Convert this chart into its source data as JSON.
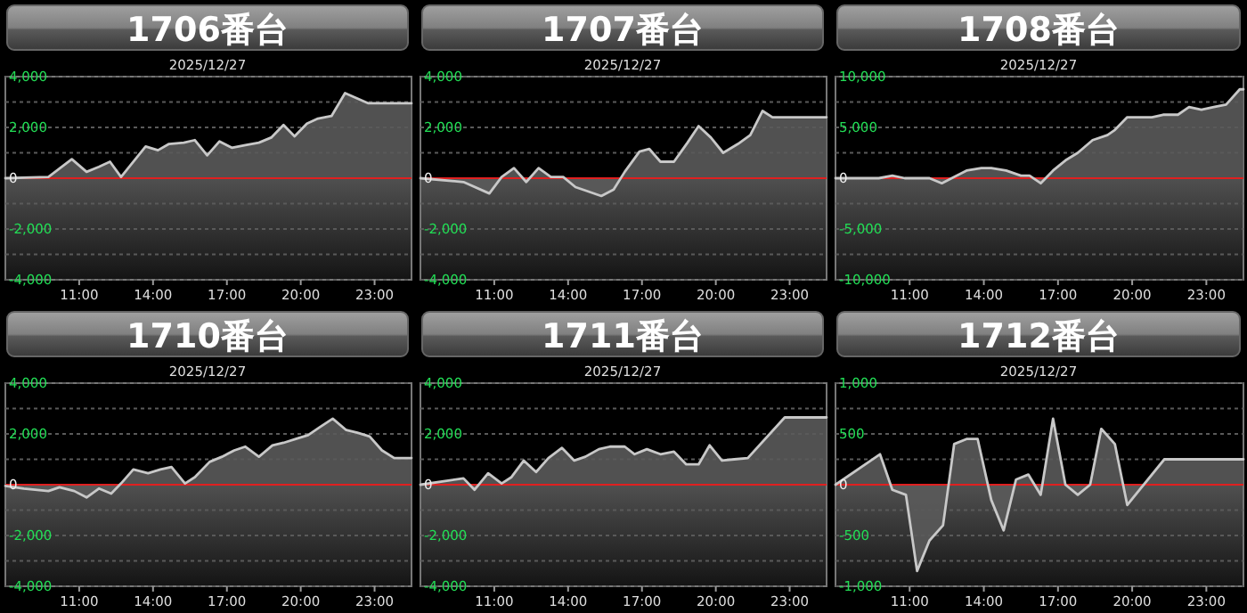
{
  "chart_data": [
    {
      "type": "area",
      "title": "1706番台",
      "subtitle": "2025/12/27",
      "color": "#c8c8c8",
      "grid": "y",
      "xlim": [
        8,
        24.5
      ],
      "ylim": [
        -4000,
        4000
      ],
      "xticks": [
        {
          "value": 11,
          "label": "11:00"
        },
        {
          "value": 14,
          "label": "14:00"
        },
        {
          "value": 17,
          "label": "17:00"
        },
        {
          "value": 20,
          "label": "20:00"
        },
        {
          "value": 23,
          "label": "23:00"
        }
      ],
      "yticks": [
        {
          "value": 4000,
          "label": "4,000"
        },
        {
          "value": 3000,
          "label": null
        },
        {
          "value": 2000,
          "label": "2,000"
        },
        {
          "value": 1000,
          "label": null
        },
        0,
        {
          "value": -1000,
          "label": null
        },
        {
          "value": -2000,
          "label": "-2,000"
        },
        {
          "value": -3000,
          "label": null
        },
        {
          "value": -4000,
          "label": "-4,000"
        }
      ],
      "ref_lines": [
        {
          "axis": "y",
          "value": 0,
          "color": "#e02020"
        }
      ],
      "x": [
        8,
        9.75,
        10.7,
        11.3,
        11.8,
        12.25,
        12.7,
        13.7,
        14.2,
        14.65,
        15.25,
        15.7,
        16.2,
        16.7,
        17.2,
        17.75,
        18.3,
        18.8,
        19.3,
        19.75,
        20.25,
        20.7,
        21.25,
        21.8,
        22.75,
        24.5
      ],
      "values": [
        0,
        50,
        750,
        250,
        450,
        650,
        50,
        1250,
        1100,
        1350,
        1400,
        1500,
        900,
        1450,
        1200,
        1300,
        1400,
        1600,
        2100,
        1650,
        2150,
        2350,
        2450,
        3350,
        2950,
        2950
      ]
    },
    {
      "type": "area",
      "title": "1707番台",
      "subtitle": "2025/12/27",
      "color": "#c8c8c8",
      "grid": "y",
      "xlim": [
        8,
        24.5
      ],
      "ylim": [
        -4000,
        4000
      ],
      "xticks": [
        {
          "value": 11,
          "label": "11:00"
        },
        {
          "value": 14,
          "label": "14:00"
        },
        {
          "value": 17,
          "label": "17:00"
        },
        {
          "value": 20,
          "label": "20:00"
        },
        {
          "value": 23,
          "label": "23:00"
        }
      ],
      "yticks": [
        {
          "value": 4000,
          "label": "4,000"
        },
        {
          "value": 3000,
          "label": null
        },
        {
          "value": 2000,
          "label": "2,000"
        },
        {
          "value": 1000,
          "label": null
        },
        0,
        {
          "value": -1000,
          "label": null
        },
        {
          "value": -2000,
          "label": "-2,000"
        },
        {
          "value": -3000,
          "label": null
        },
        {
          "value": -4000,
          "label": "-4,000"
        }
      ],
      "ref_lines": [
        {
          "axis": "y",
          "value": 0,
          "color": "#e02020"
        }
      ],
      "x": [
        8,
        9.75,
        10.8,
        11.3,
        11.8,
        12.3,
        12.8,
        13.3,
        13.8,
        14.3,
        14.75,
        15.35,
        15.85,
        16.3,
        16.9,
        17.3,
        17.75,
        18.3,
        18.85,
        19.3,
        19.8,
        20.3,
        20.9,
        21.4,
        21.9,
        22.3,
        24.5
      ],
      "values": [
        0,
        -150,
        -600,
        50,
        400,
        -150,
        400,
        50,
        50,
        -350,
        -500,
        -700,
        -450,
        250,
        1050,
        1150,
        650,
        650,
        1400,
        2050,
        1600,
        1000,
        1350,
        1700,
        2650,
        2400,
        2400
      ]
    },
    {
      "type": "area",
      "title": "1708番台",
      "subtitle": "2025/12/27",
      "color": "#c8c8c8",
      "grid": "y",
      "xlim": [
        8,
        24.5
      ],
      "ylim": [
        -10000,
        10000
      ],
      "xticks": [
        {
          "value": 11,
          "label": "11:00"
        },
        {
          "value": 14,
          "label": "14:00"
        },
        {
          "value": 17,
          "label": "17:00"
        },
        {
          "value": 20,
          "label": "20:00"
        },
        {
          "value": 23,
          "label": "23:00"
        }
      ],
      "yticks": [
        {
          "value": 10000,
          "label": "10,000"
        },
        {
          "value": 7500,
          "label": null
        },
        {
          "value": 5000,
          "label": "5,000"
        },
        {
          "value": 2500,
          "label": null
        },
        0,
        {
          "value": -2500,
          "label": null
        },
        {
          "value": -5000,
          "label": "-5,000"
        },
        {
          "value": -7500,
          "label": null
        },
        {
          "value": -10000,
          "label": "-10,000"
        }
      ],
      "ref_lines": [
        {
          "axis": "y",
          "value": 0,
          "color": "#e02020"
        }
      ],
      "x": [
        8,
        9.75,
        10.3,
        10.8,
        11.4,
        11.8,
        12.3,
        12.7,
        13.3,
        13.9,
        14.3,
        14.9,
        15.5,
        15.85,
        16.3,
        16.8,
        17.3,
        17.8,
        18.4,
        19,
        19.3,
        19.8,
        20.3,
        20.8,
        21.25,
        21.85,
        22.3,
        22.8,
        23.3,
        23.8,
        24.35,
        24.5
      ],
      "values": [
        0,
        0,
        250,
        0,
        0,
        0,
        -500,
        0,
        750,
        1000,
        1000,
        750,
        250,
        250,
        -500,
        750,
        1750,
        2500,
        3750,
        4250,
        4750,
        6000,
        6000,
        6000,
        6250,
        6250,
        7000,
        6750,
        7000,
        7250,
        8750,
        8750
      ]
    },
    {
      "type": "area",
      "title": "1710番台",
      "subtitle": "2025/12/27",
      "color": "#c8c8c8",
      "grid": "y",
      "xlim": [
        8,
        24.5
      ],
      "ylim": [
        -4000,
        4000
      ],
      "xticks": [
        {
          "value": 11,
          "label": "11:00"
        },
        {
          "value": 14,
          "label": "14:00"
        },
        {
          "value": 17,
          "label": "17:00"
        },
        {
          "value": 20,
          "label": "20:00"
        },
        {
          "value": 23,
          "label": "23:00"
        }
      ],
      "yticks": [
        {
          "value": 4000,
          "label": "4,000"
        },
        {
          "value": 3000,
          "label": null
        },
        {
          "value": 2000,
          "label": "2,000"
        },
        {
          "value": 1000,
          "label": null
        },
        0,
        {
          "value": -1000,
          "label": null
        },
        {
          "value": -2000,
          "label": "-2,000"
        },
        {
          "value": -3000,
          "label": null
        },
        {
          "value": -4000,
          "label": "-4,000"
        }
      ],
      "ref_lines": [
        {
          "axis": "y",
          "value": 0,
          "color": "#e02020"
        }
      ],
      "x": [
        8,
        8.75,
        9.75,
        10.2,
        10.8,
        11.3,
        11.8,
        12.3,
        12.7,
        13.2,
        13.8,
        14.3,
        14.75,
        15.3,
        15.7,
        16.3,
        16.8,
        17.3,
        17.75,
        18.3,
        18.85,
        19.3,
        19.8,
        20.3,
        20.75,
        21.3,
        21.85,
        22.3,
        22.8,
        23.3,
        23.8,
        24.5
      ],
      "values": [
        -50,
        -150,
        -250,
        -100,
        -250,
        -500,
        -150,
        -350,
        50,
        600,
        450,
        600,
        700,
        50,
        300,
        900,
        1100,
        1350,
        1500,
        1100,
        1550,
        1650,
        1800,
        1950,
        2250,
        2600,
        2150,
        2050,
        1900,
        1350,
        1050,
        1050
      ]
    },
    {
      "type": "area",
      "title": "1711番台",
      "subtitle": "2025/12/27",
      "color": "#c8c8c8",
      "grid": "y",
      "xlim": [
        8,
        24.5
      ],
      "ylim": [
        -4000,
        4000
      ],
      "xticks": [
        {
          "value": 11,
          "label": "11:00"
        },
        {
          "value": 14,
          "label": "14:00"
        },
        {
          "value": 17,
          "label": "17:00"
        },
        {
          "value": 20,
          "label": "20:00"
        },
        {
          "value": 23,
          "label": "23:00"
        }
      ],
      "yticks": [
        {
          "value": 4000,
          "label": "4,000"
        },
        {
          "value": 3000,
          "label": null
        },
        {
          "value": 2000,
          "label": "2,000"
        },
        {
          "value": 1000,
          "label": null
        },
        0,
        {
          "value": -1000,
          "label": null
        },
        {
          "value": -2000,
          "label": "-2,000"
        },
        {
          "value": -3000,
          "label": null
        },
        {
          "value": -4000,
          "label": "-4,000"
        }
      ],
      "ref_lines": [
        {
          "axis": "y",
          "value": 0,
          "color": "#e02020"
        }
      ],
      "x": [
        8,
        9.75,
        10.2,
        10.75,
        11.3,
        11.7,
        12.2,
        12.7,
        13.2,
        13.75,
        14.25,
        14.7,
        15.25,
        15.7,
        16.3,
        16.7,
        17.2,
        17.75,
        18.3,
        18.8,
        19.3,
        19.75,
        20.25,
        20.75,
        21.3,
        22.8,
        24.5
      ],
      "values": [
        0,
        250,
        -200,
        450,
        50,
        300,
        950,
        500,
        1050,
        1450,
        950,
        1100,
        1400,
        1500,
        1500,
        1200,
        1400,
        1200,
        1300,
        800,
        800,
        1550,
        950,
        1000,
        1050,
        2650,
        2650
      ]
    },
    {
      "type": "area",
      "title": "1712番台",
      "subtitle": "2025/12/27",
      "color": "#c8c8c8",
      "grid": "y",
      "xlim": [
        8,
        24.5
      ],
      "ylim": [
        -1000,
        1000
      ],
      "xticks": [
        {
          "value": 11,
          "label": "11:00"
        },
        {
          "value": 14,
          "label": "14:00"
        },
        {
          "value": 17,
          "label": "17:00"
        },
        {
          "value": 20,
          "label": "20:00"
        },
        {
          "value": 23,
          "label": "23:00"
        }
      ],
      "yticks": [
        {
          "value": 1000,
          "label": "1,000"
        },
        {
          "value": 750,
          "label": null
        },
        500,
        {
          "value": 250,
          "label": null
        },
        0,
        {
          "value": -250,
          "label": null
        },
        -500,
        {
          "value": -750,
          "label": null
        },
        {
          "value": -1000,
          "label": "-1,000"
        }
      ],
      "ref_lines": [
        {
          "axis": "y",
          "value": 0,
          "color": "#e02020"
        }
      ],
      "x": [
        8,
        9.8,
        10.3,
        10.85,
        11.3,
        11.8,
        12.35,
        12.8,
        13.3,
        13.75,
        14.3,
        14.8,
        15.3,
        15.8,
        16.3,
        16.8,
        17.3,
        17.8,
        18.3,
        18.75,
        19.3,
        19.8,
        21.3,
        24.5
      ],
      "values": [
        0,
        300,
        -50,
        -100,
        -850,
        -550,
        -400,
        400,
        450,
        450,
        -150,
        -450,
        50,
        100,
        -100,
        650,
        0,
        -100,
        0,
        550,
        400,
        -200,
        250,
        250
      ]
    }
  ]
}
